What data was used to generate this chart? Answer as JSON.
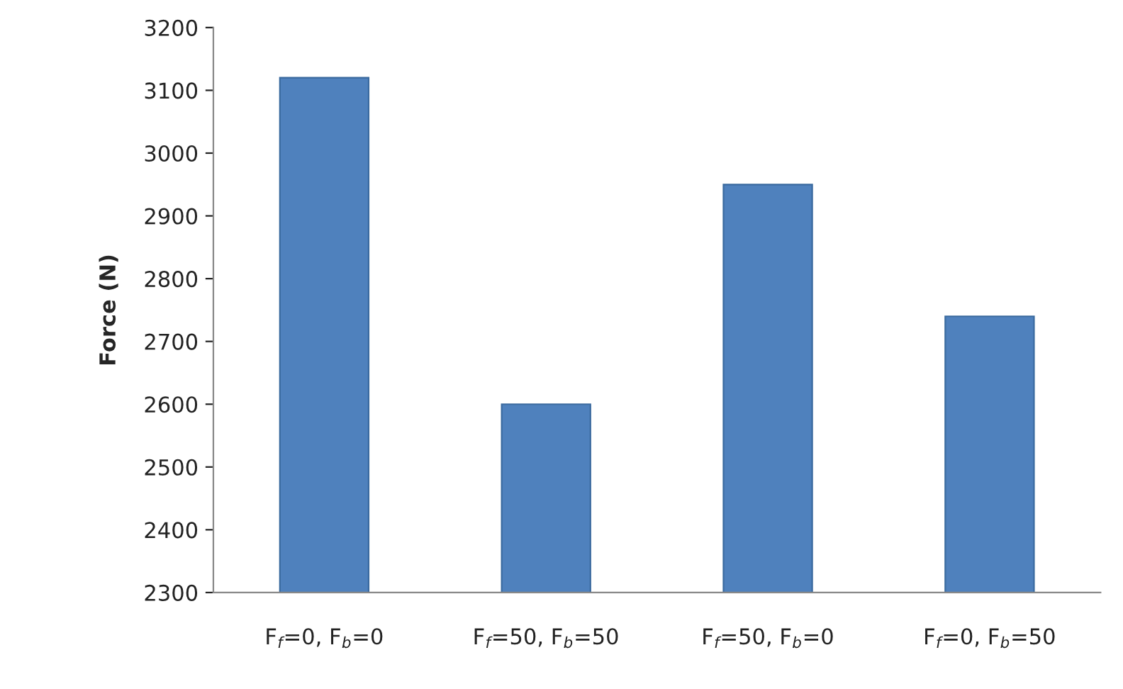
{
  "chart_data": {
    "type": "bar",
    "ylabel": "Force (N)",
    "categories": [
      "F$_{f}$=0, F$_{b}$=0",
      "F$_{f}$=50, F$_{b}$=50",
      "F$_{f}$=50, F$_{b}$=0",
      "F$_{f}$=0, F$_{b}$=50"
    ],
    "values": [
      3120,
      2600,
      2950,
      2740
    ],
    "color": "#4f81bd",
    "ylim": [
      2300,
      3200
    ],
    "yticks": [
      2300,
      2400,
      2500,
      2600,
      2700,
      2800,
      2900,
      3000,
      3100,
      3200
    ]
  }
}
